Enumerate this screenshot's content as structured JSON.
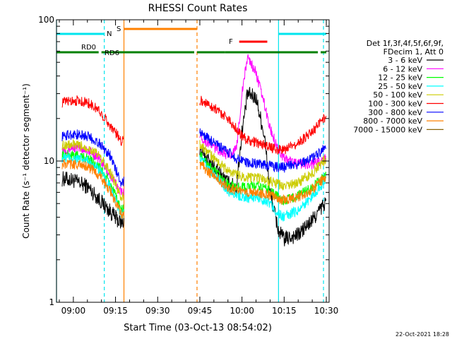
{
  "chart_data": {
    "type": "line",
    "title": "RHESSI Count Rates",
    "xlabel": "Start Time (03-Oct-13 08:54:02)",
    "ylabel": "Count Rate (s⁻¹ detector segment⁻¹)",
    "yscale": "log",
    "ylim": [
      1,
      100
    ],
    "xlim": [
      "08:54",
      "10:31"
    ],
    "x_ticks": [
      "09:00",
      "09:15",
      "09:30",
      "09:45",
      "10:00",
      "10:15",
      "10:30"
    ],
    "y_ticks": [
      "1",
      "10",
      "100"
    ],
    "grid": false,
    "legend_position": "right",
    "legend_header": [
      "Det 1f,3f,4f,5f,6f,9f,",
      "FDecim 1, Att 0"
    ],
    "data_gaps": [
      [
        "09:18",
        "09:45"
      ]
    ],
    "flags": [
      {
        "label": "N",
        "color": "#00e5ee",
        "segments": [
          [
            "08:54",
            "09:11"
          ],
          [
            "10:13",
            "10:30"
          ]
        ]
      },
      {
        "label": "S",
        "color": "#ff8000",
        "segments": [
          [
            "09:18",
            "09:44"
          ]
        ]
      },
      {
        "label": "F",
        "color": "#ff0000",
        "segments": [
          [
            "09:59",
            "10:09"
          ]
        ]
      },
      {
        "label": "RD0",
        "color": "#008000",
        "segments": [
          [
            "08:54",
            "09:09"
          ],
          [
            "09:10",
            "09:43"
          ],
          [
            "09:44",
            "09:54"
          ],
          [
            "09:54",
            "10:27"
          ],
          [
            "10:28",
            "10:30"
          ]
        ]
      },
      {
        "label": "RD6",
        "color": "#008000",
        "segments": []
      }
    ],
    "vertical_lines": [
      {
        "time": "08:54",
        "color": "#00e5ee",
        "style": "solid"
      },
      {
        "time": "09:11",
        "color": "#00e5ee",
        "style": "dashed"
      },
      {
        "time": "09:18",
        "color": "#ff8000",
        "style": "solid"
      },
      {
        "time": "09:44",
        "color": "#ff8000",
        "style": "dashed"
      },
      {
        "time": "10:13",
        "color": "#00e5ee",
        "style": "solid"
      },
      {
        "time": "10:29",
        "color": "#00e5ee",
        "style": "dashed"
      }
    ],
    "series": [
      {
        "name": "3 - 6 keV",
        "color": "#000000",
        "x": [
          "08:56",
          "09:00",
          "09:05",
          "09:09",
          "09:13",
          "09:17",
          "09:45",
          "09:50",
          "09:55",
          "09:58",
          "10:00",
          "10:02",
          "10:05",
          "10:08",
          "10:10",
          "10:13",
          "10:15",
          "10:20",
          "10:25",
          "10:30"
        ],
        "y": [
          7.5,
          7.3,
          6.6,
          5.4,
          4.4,
          3.6,
          12.0,
          9.0,
          7.0,
          6.5,
          16.0,
          30.0,
          28.0,
          15.0,
          6.0,
          3.2,
          2.8,
          3.0,
          3.8,
          5.2
        ]
      },
      {
        "name": "6 - 12 keV",
        "color": "#ff00ff",
        "x": [
          "08:56",
          "09:00",
          "09:05",
          "09:09",
          "09:13",
          "09:17",
          "09:45",
          "09:50",
          "09:55",
          "09:58",
          "10:00",
          "10:02",
          "10:05",
          "10:08",
          "10:10",
          "10:13",
          "10:15",
          "10:20",
          "10:25",
          "10:30"
        ],
        "y": [
          12.0,
          12.5,
          12.0,
          10.5,
          8.0,
          6.0,
          15.0,
          12.5,
          11.0,
          12.0,
          30.0,
          55.0,
          42.0,
          25.0,
          17.0,
          12.0,
          10.5,
          9.5,
          9.5,
          10.5
        ]
      },
      {
        "name": "12 - 25 keV",
        "color": "#00ff00",
        "x": [
          "08:56",
          "09:00",
          "09:05",
          "09:09",
          "09:13",
          "09:17",
          "09:45",
          "09:50",
          "09:55",
          "09:58",
          "10:00",
          "10:02",
          "10:05",
          "10:08",
          "10:10",
          "10:13",
          "10:15",
          "10:20",
          "10:25",
          "10:30"
        ],
        "y": [
          11.0,
          11.0,
          10.5,
          9.2,
          7.0,
          4.5,
          11.0,
          8.5,
          6.8,
          6.5,
          6.5,
          6.6,
          6.6,
          6.5,
          6.2,
          5.5,
          5.2,
          5.7,
          6.5,
          8.0
        ]
      },
      {
        "name": "25 - 50 keV",
        "color": "#00ffff",
        "x": [
          "08:56",
          "09:00",
          "09:05",
          "09:09",
          "09:13",
          "09:17",
          "09:45",
          "09:50",
          "09:55",
          "09:58",
          "10:00",
          "10:02",
          "10:05",
          "10:08",
          "10:10",
          "10:13",
          "10:15",
          "10:20",
          "10:25",
          "10:30"
        ],
        "y": [
          10.5,
          10.5,
          10.0,
          8.8,
          6.5,
          4.2,
          10.5,
          8.0,
          6.2,
          5.8,
          5.6,
          5.5,
          5.5,
          5.3,
          5.0,
          4.2,
          4.0,
          4.5,
          5.6,
          7.5
        ]
      },
      {
        "name": "50 - 100 keV",
        "color": "#cccc00",
        "x": [
          "08:56",
          "09:00",
          "09:05",
          "09:09",
          "09:13",
          "09:17",
          "09:45",
          "09:50",
          "09:55",
          "09:58",
          "10:00",
          "10:02",
          "10:05",
          "10:08",
          "10:10",
          "10:13",
          "10:15",
          "10:20",
          "10:25",
          "10:30"
        ],
        "y": [
          13.0,
          13.0,
          12.5,
          11.0,
          8.5,
          5.5,
          13.0,
          10.5,
          8.5,
          8.0,
          7.8,
          7.7,
          7.6,
          7.4,
          7.2,
          6.8,
          6.6,
          7.0,
          8.2,
          10.5
        ]
      },
      {
        "name": "100 - 300 keV",
        "color": "#ff0000",
        "x": [
          "08:56",
          "09:00",
          "09:05",
          "09:09",
          "09:13",
          "09:17",
          "09:45",
          "09:50",
          "09:55",
          "09:58",
          "10:00",
          "10:02",
          "10:05",
          "10:08",
          "10:10",
          "10:13",
          "10:15",
          "10:20",
          "10:25",
          "10:30"
        ],
        "y": [
          26.0,
          27.0,
          26.0,
          23.0,
          18.0,
          14.0,
          27.0,
          24.0,
          20.0,
          17.0,
          15.0,
          14.0,
          13.5,
          13.0,
          12.5,
          12.0,
          12.0,
          13.5,
          16.0,
          21.0
        ]
      },
      {
        "name": "300 - 800 keV",
        "color": "#0000ff",
        "x": [
          "08:56",
          "09:00",
          "09:05",
          "09:09",
          "09:13",
          "09:17",
          "09:45",
          "09:50",
          "09:55",
          "09:58",
          "10:00",
          "10:02",
          "10:05",
          "10:08",
          "10:10",
          "10:13",
          "10:15",
          "10:20",
          "10:25",
          "10:30"
        ],
        "y": [
          15.0,
          15.5,
          15.0,
          13.5,
          11.0,
          7.0,
          16.0,
          13.5,
          11.5,
          10.5,
          10.0,
          9.8,
          9.6,
          9.4,
          9.2,
          9.0,
          9.0,
          9.5,
          10.5,
          12.5
        ]
      },
      {
        "name": "800 - 7000 keV",
        "color": "#ff8000",
        "x": [
          "08:56",
          "09:00",
          "09:05",
          "09:09",
          "09:13",
          "09:17",
          "09:45",
          "09:50",
          "09:55",
          "09:58",
          "10:00",
          "10:02",
          "10:05",
          "10:08",
          "10:10",
          "10:13",
          "10:15",
          "10:20",
          "10:25",
          "10:30"
        ],
        "y": [
          9.5,
          9.5,
          9.2,
          8.0,
          6.2,
          4.2,
          9.5,
          7.8,
          6.5,
          6.2,
          6.0,
          6.0,
          6.0,
          5.9,
          5.7,
          5.4,
          5.3,
          5.6,
          6.3,
          7.8
        ]
      },
      {
        "name": "7000 - 15000 keV",
        "color": "#8b6508",
        "x": [],
        "y": []
      }
    ]
  },
  "footer_date": "22-Oct-2021 18:28"
}
